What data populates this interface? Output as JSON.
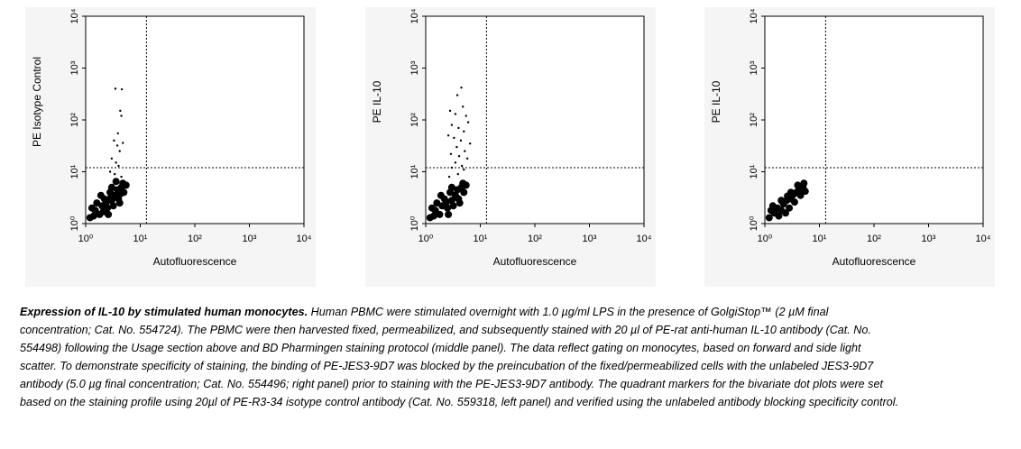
{
  "chart_data": [
    {
      "type": "scatter",
      "x_label": "Autofluorescence",
      "y_label": "PE Isotype Control",
      "log_x": true,
      "log_y": true,
      "color": "#000000",
      "xlim": [
        1,
        10000
      ],
      "ylim": [
        1,
        10000
      ],
      "xticks": [
        {
          "value": 1,
          "label": "10⁰"
        },
        {
          "value": 10,
          "label": "10¹"
        },
        {
          "value": 100,
          "label": "10²"
        },
        {
          "value": 1000,
          "label": "10³"
        },
        {
          "value": 10000,
          "label": "10⁴"
        }
      ],
      "yticks": [
        {
          "value": 1,
          "label": "10⁰"
        },
        {
          "value": 10,
          "label": "10¹"
        },
        {
          "value": 100,
          "label": "10²"
        },
        {
          "value": 1000,
          "label": "10³"
        },
        {
          "value": 10000,
          "label": "10⁴"
        }
      ],
      "quadrant_x": 13,
      "quadrant_y": 12,
      "x": [
        1.2,
        1.5,
        1.8,
        2,
        2.5,
        3,
        3.5,
        4,
        2.2,
        1.6,
        2.8,
        3.8,
        4.5,
        5,
        1.3,
        2.6,
        3.2,
        4.2,
        1.9,
        3,
        4.8,
        2.4,
        1.4,
        5.5,
        3.6,
        2.1,
        2.9,
        4.4,
        3.5,
        4.6,
        4.3,
        4.5,
        3.3,
        3.8,
        4.8,
        4.2,
        3,
        3.6,
        4,
        2.8,
        3.4,
        4.5,
        3.9
      ],
      "values": [
        1.3,
        1.8,
        1.5,
        2.2,
        2,
        2.8,
        3.5,
        3,
        3,
        2.5,
        4,
        4.5,
        5,
        4,
        2,
        1.5,
        2.2,
        2.5,
        3.5,
        5,
        6,
        2.6,
        1.4,
        5.5,
        6.5,
        1.7,
        3.2,
        3.8,
        400,
        390,
        150,
        120,
        40,
        32,
        36,
        25,
        18,
        15,
        13,
        10,
        9,
        8,
        55
      ]
    },
    {
      "type": "scatter",
      "x_label": "Autofluorescence",
      "y_label": "PE IL-10",
      "log_x": true,
      "log_y": true,
      "color": "#000000",
      "xlim": [
        1,
        10000
      ],
      "ylim": [
        1,
        10000
      ],
      "xticks": [
        {
          "value": 1,
          "label": "10⁰"
        },
        {
          "value": 10,
          "label": "10¹"
        },
        {
          "value": 100,
          "label": "10²"
        },
        {
          "value": 1000,
          "label": "10³"
        },
        {
          "value": 10000,
          "label": "10⁴"
        }
      ],
      "yticks": [
        {
          "value": 1,
          "label": "10⁰"
        },
        {
          "value": 10,
          "label": "10¹"
        },
        {
          "value": 100,
          "label": "10²"
        },
        {
          "value": 1000,
          "label": "10³"
        },
        {
          "value": 10000,
          "label": "10⁴"
        }
      ],
      "quadrant_x": 13,
      "quadrant_y": 12,
      "x": [
        1.2,
        1.5,
        1.8,
        2,
        2.5,
        3,
        3.5,
        4,
        2.2,
        1.6,
        2.8,
        3.8,
        4.5,
        5,
        1.3,
        2.6,
        3.2,
        4.2,
        1.9,
        3,
        4.8,
        2.4,
        1.4,
        5.5,
        4.5,
        3.8,
        2.8,
        3.5,
        4.8,
        5.5,
        6,
        3,
        4,
        5,
        2.6,
        3.3,
        4.4,
        6.5,
        3.7,
        5.2,
        2.9,
        4.1,
        5.8,
        3.5,
        4.6,
        3,
        5,
        3.9,
        2.7
      ],
      "values": [
        1.3,
        1.8,
        1.5,
        2.2,
        2,
        2.8,
        3.5,
        3,
        3,
        2.5,
        4,
        4.5,
        5,
        4,
        2,
        1.5,
        2.2,
        2.5,
        3.5,
        5,
        6,
        2.6,
        1.4,
        5.5,
        420,
        300,
        150,
        130,
        180,
        120,
        90,
        80,
        70,
        60,
        50,
        45,
        40,
        35,
        30,
        25,
        22,
        20,
        18,
        15,
        13,
        12,
        11,
        9,
        8
      ]
    },
    {
      "type": "scatter",
      "x_label": "Autofluorescence",
      "y_label": "PE IL-10",
      "log_x": true,
      "log_y": true,
      "color": "#000000",
      "xlim": [
        1,
        10000
      ],
      "ylim": [
        1,
        10000
      ],
      "xticks": [
        {
          "value": 1,
          "label": "10⁰"
        },
        {
          "value": 10,
          "label": "10¹"
        },
        {
          "value": 100,
          "label": "10²"
        },
        {
          "value": 1000,
          "label": "10³"
        },
        {
          "value": 10000,
          "label": "10⁴"
        }
      ],
      "yticks": [
        {
          "value": 1,
          "label": "10⁰"
        },
        {
          "value": 10,
          "label": "10¹"
        },
        {
          "value": 100,
          "label": "10²"
        },
        {
          "value": 1000,
          "label": "10³"
        },
        {
          "value": 10000,
          "label": "10⁴"
        }
      ],
      "quadrant_x": 13,
      "quadrant_y": 12,
      "x": [
        1.2,
        1.5,
        1.7,
        2,
        2.2,
        2.5,
        3,
        3.3,
        3.8,
        4.2,
        5,
        5.5,
        1.4,
        2.8,
        3.5,
        4.5,
        2,
        1.8,
        2.6,
        4,
        1.3,
        3,
        2.4,
        5.2
      ],
      "values": [
        1.3,
        1.6,
        2,
        1.8,
        2.4,
        2.8,
        3,
        3.6,
        4,
        4.5,
        5,
        4.2,
        2.2,
        2,
        2.6,
        3.5,
        2.8,
        1.4,
        3.4,
        5.5,
        1.8,
        4,
        1.6,
        6
      ]
    }
  ],
  "caption": {
    "title": "Expression of IL-10 by stimulated human monocytes.",
    "text": "Human PBMC were stimulated overnight with 1.0 µg/ml LPS in the presence of GolgiStop™ (2 µM final concentration; Cat. No. 554724). The PBMC were then harvested fixed, permeabilized, and subsequently stained with 20 µl of PE-rat anti-human IL-10 antibody (Cat. No. 554498) following the Usage section above and BD Pharmingen staining protocol (middle panel). The data reflect gating on monocytes, based on forward and side light scatter. To demonstrate specificity of staining, the binding of PE-JES3-9D7 was blocked by the preincubation of the fixed/permeabilized cells with the unlabeled JES3-9D7 antibody (5.0 µg final concentration; Cat. No. 554496; right panel) prior to staining with the PE-JES3-9D7 antibody. The quadrant markers for the bivariate dot plots were set based on the staining profile using 20µl of PE-R3-34 isotype control antibody (Cat. No. 559318, left panel) and verified using the unlabeled antibody blocking specificity control."
  }
}
